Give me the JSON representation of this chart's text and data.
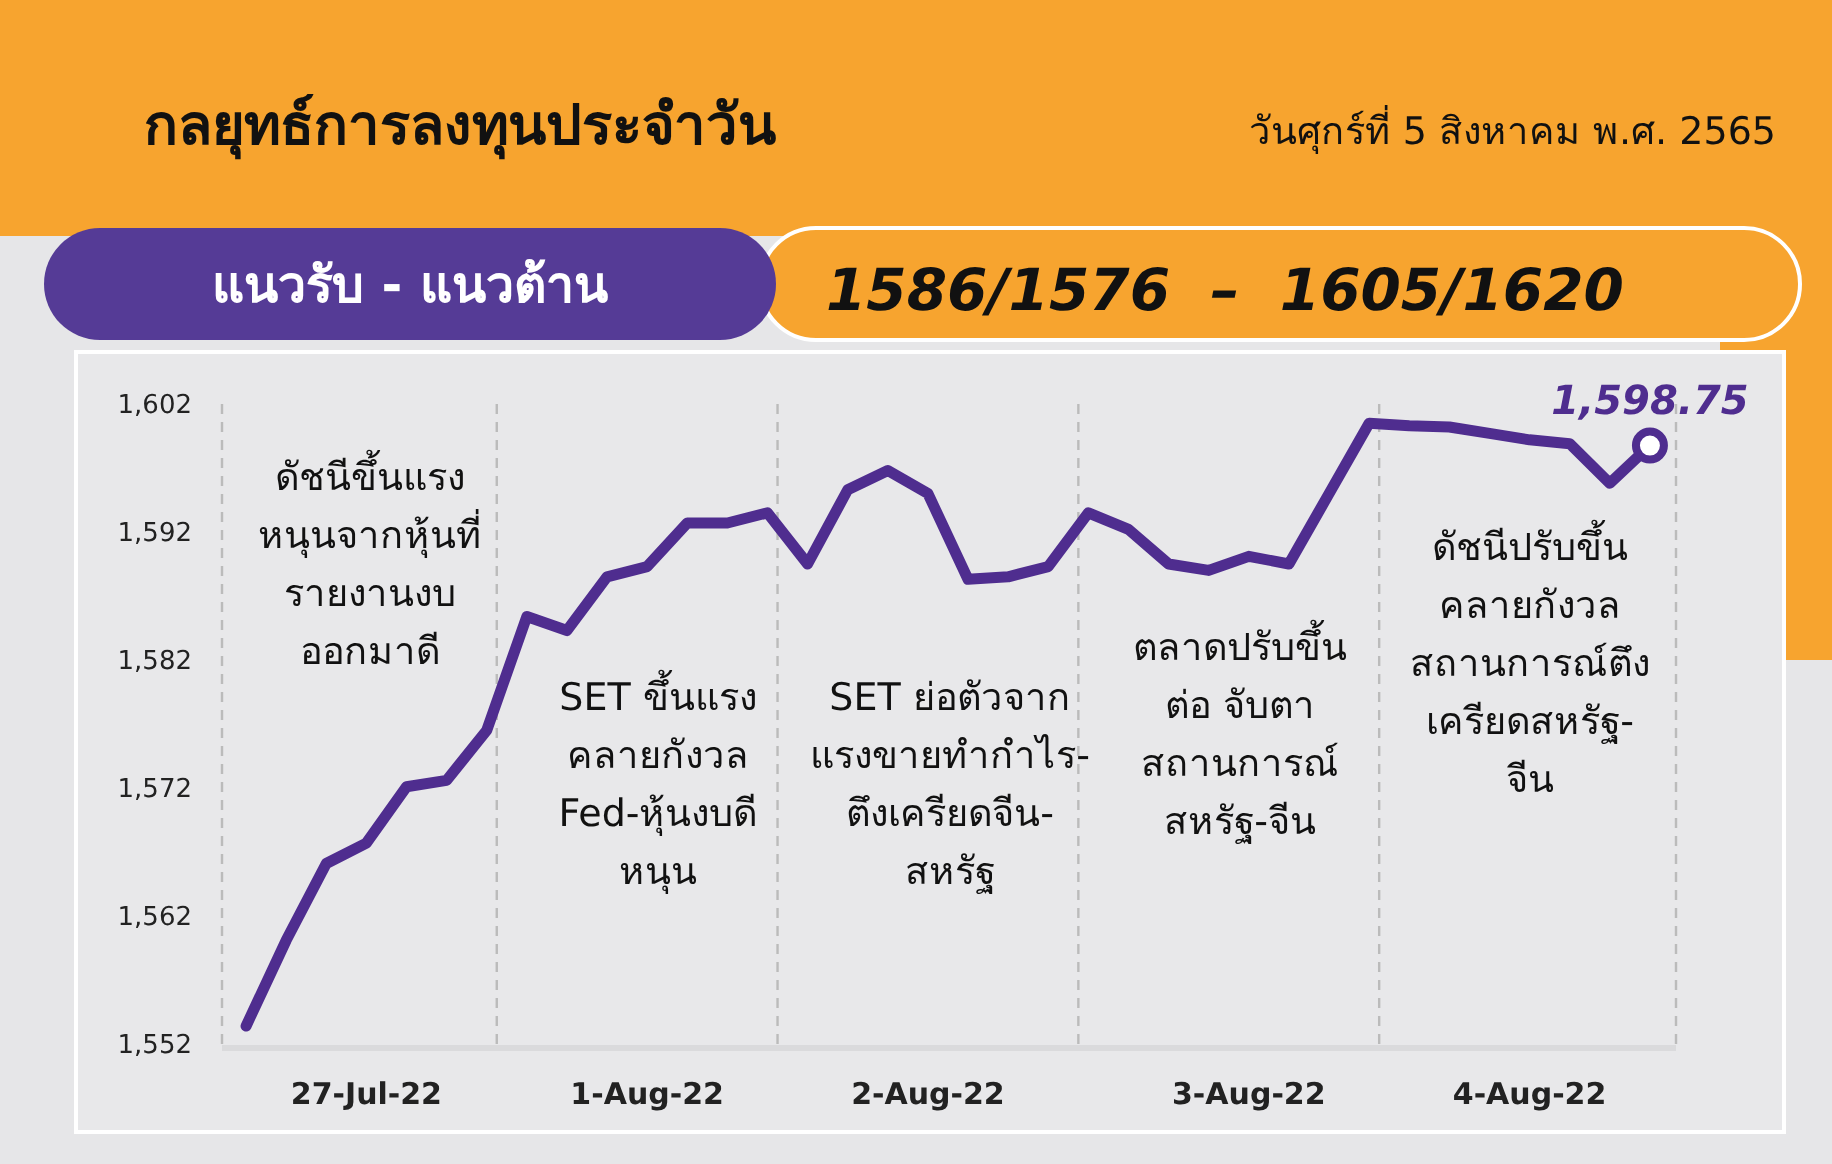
{
  "chart_data": {
    "type": "line",
    "title": "กลยุทธ์การลงทุนประจำวัน",
    "subtitle": "วันศุกร์ที่ 5 สิงหาคม พ.ศ. 2565",
    "annotations": [
      "แนวรับ - แนวต้าน",
      "1586/1576  –  1605/1620",
      "ดัชนีขึ้นแรง\nหนุนจากหุ้นที่\nรายงานงบ\nออกมาดี",
      "SET ขึ้นแรง\nคลายกังวล\nFed-หุ้นงบดี\nหนุน",
      "SET ย่อตัวจาก\nแรงขายทำกำไร-\nตึงเครียดจีน-\nสหรัฐ",
      "ตลาดปรับขึ้น\nต่อ จับตา\nสถานการณ์\nสหรัฐ-จีน",
      "ดัชนีปรับขึ้น\nคลายกังวล\nสถานการณ์ตึง\nเครียดสหรัฐ-\nจีน"
    ],
    "categories": [
      null,
      null,
      null,
      "27-Jul-22",
      null,
      null,
      null,
      null,
      null,
      null,
      "1-Aug-22",
      null,
      null,
      null,
      null,
      null,
      null,
      "2-Aug-22",
      null,
      null,
      null,
      null,
      null,
      null,
      null,
      "3-Aug-22",
      null,
      null,
      null,
      null,
      null,
      null,
      "4-Aug-22",
      null,
      null,
      null
    ],
    "series": [
      {
        "color": "#4f2d8f",
        "values": [
          1553.4,
          1560.1,
          1566.1,
          1567.7,
          1572.1,
          1572.6,
          1576.5,
          1585.4,
          1584.3,
          1588.5,
          1589.3,
          1592.7,
          1592.7,
          1593.5,
          1589.5,
          1595.3,
          1596.8,
          1595.0,
          1588.3,
          1588.5,
          1589.3,
          1593.5,
          1592.2,
          1589.5,
          1589.0,
          1590.1,
          1589.5,
          1595.0,
          1600.5,
          1600.3,
          1600.2,
          1599.7,
          1599.2,
          1598.9,
          1595.8,
          1598.75
        ],
        "value_labels": [
          null,
          null,
          null,
          null,
          null,
          null,
          null,
          null,
          null,
          null,
          null,
          null,
          null,
          null,
          null,
          null,
          null,
          null,
          null,
          null,
          null,
          null,
          null,
          null,
          null,
          null,
          null,
          null,
          null,
          null,
          null,
          null,
          null,
          null,
          null,
          "1,598.75"
        ]
      }
    ],
    "ylim": [
      1552,
      1602
    ],
    "yticks": [
      {
        "value": 1552,
        "label": "1,552"
      },
      {
        "value": 1562,
        "label": "1,562"
      },
      {
        "value": 1572,
        "label": "1,572"
      },
      {
        "value": 1582,
        "label": "1,582"
      },
      {
        "value": 1592,
        "label": "1,592"
      },
      {
        "value": 1602,
        "label": "1,602"
      }
    ],
    "grid": false,
    "marker": "none",
    "line_style": "solid"
  }
}
